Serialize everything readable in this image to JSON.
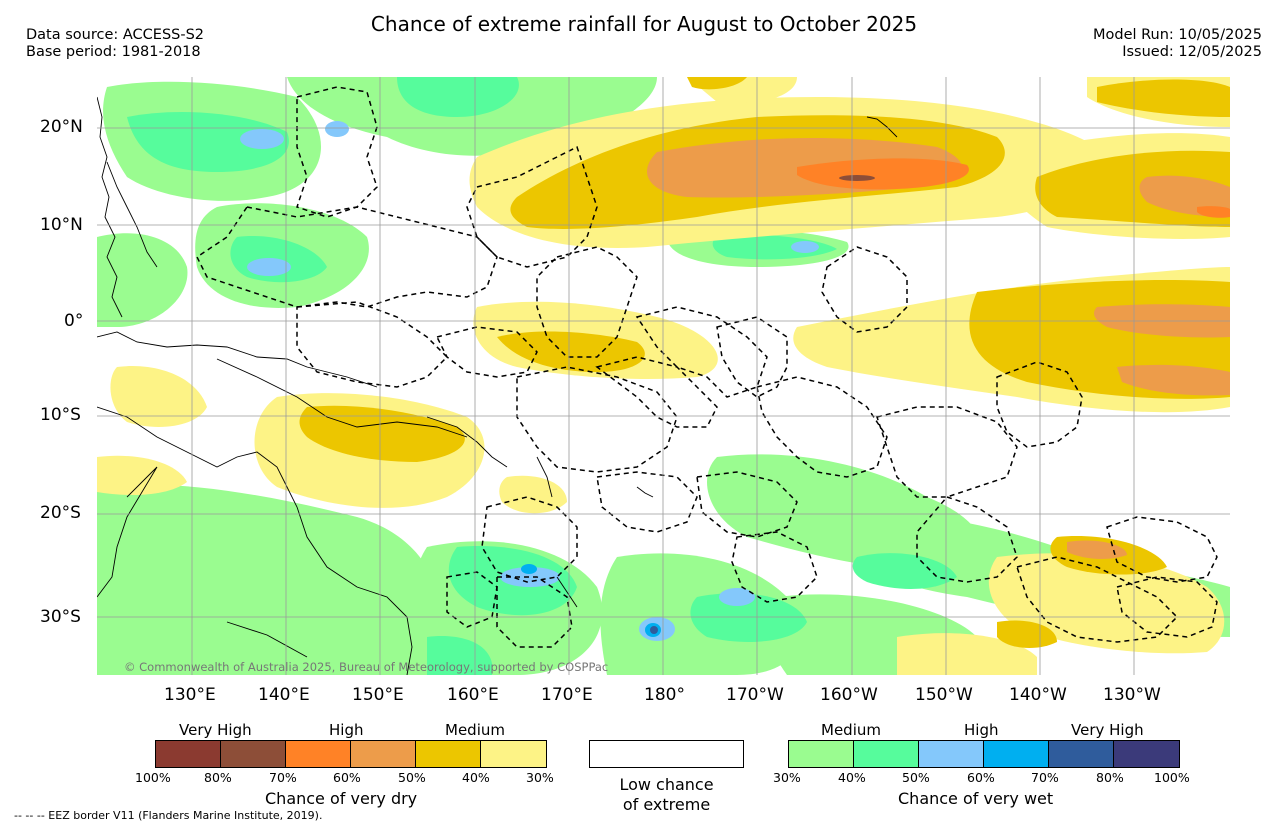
{
  "title": "Chance of extreme rainfall for August to October 2025",
  "header_left": {
    "data_source": "Data source: ACCESS-S2",
    "base_period": "Base period: 1981-2018"
  },
  "header_right": {
    "model_run": "Model Run: 10/05/2025",
    "issued": "Issued: 12/05/2025"
  },
  "lat_ticks": [
    "20°N",
    "10°N",
    "0°",
    "10°S",
    "20°S",
    "30°S"
  ],
  "lon_ticks": [
    "130°E",
    "140°E",
    "150°E",
    "160°E",
    "170°E",
    "180°",
    "170°W",
    "160°W",
    "150°W",
    "140°W",
    "130°W"
  ],
  "copyright": "© Commonwealth of Australia 2025, Bureau of Meteorology, supported by COSPPac",
  "dry_legend": {
    "categories": [
      "Very High",
      "High",
      "Medium"
    ],
    "colors": [
      "#8b3a30",
      "#8d4e38",
      "#ff8226",
      "#ed9c4a",
      "#ecc600",
      "#fdf386"
    ],
    "ticks": [
      "100%",
      "80%",
      "70%",
      "60%",
      "50%",
      "40%",
      "30%"
    ],
    "caption": "Chance of very dry"
  },
  "low_legend": {
    "line1": "Low chance",
    "line2": "of extreme"
  },
  "wet_legend": {
    "categories": [
      "Medium",
      "High",
      "Very High"
    ],
    "colors": [
      "#9afc90",
      "#56fc9c",
      "#84c8fb",
      "#00aff0",
      "#2f5c9c",
      "#3b3a7a"
    ],
    "ticks": [
      "30%",
      "40%",
      "50%",
      "60%",
      "70%",
      "80%",
      "100%"
    ],
    "caption": "Chance of very wet"
  },
  "footer": "--  --  -- EEZ border V11 (Flanders Marine Institute, 2019)."
}
